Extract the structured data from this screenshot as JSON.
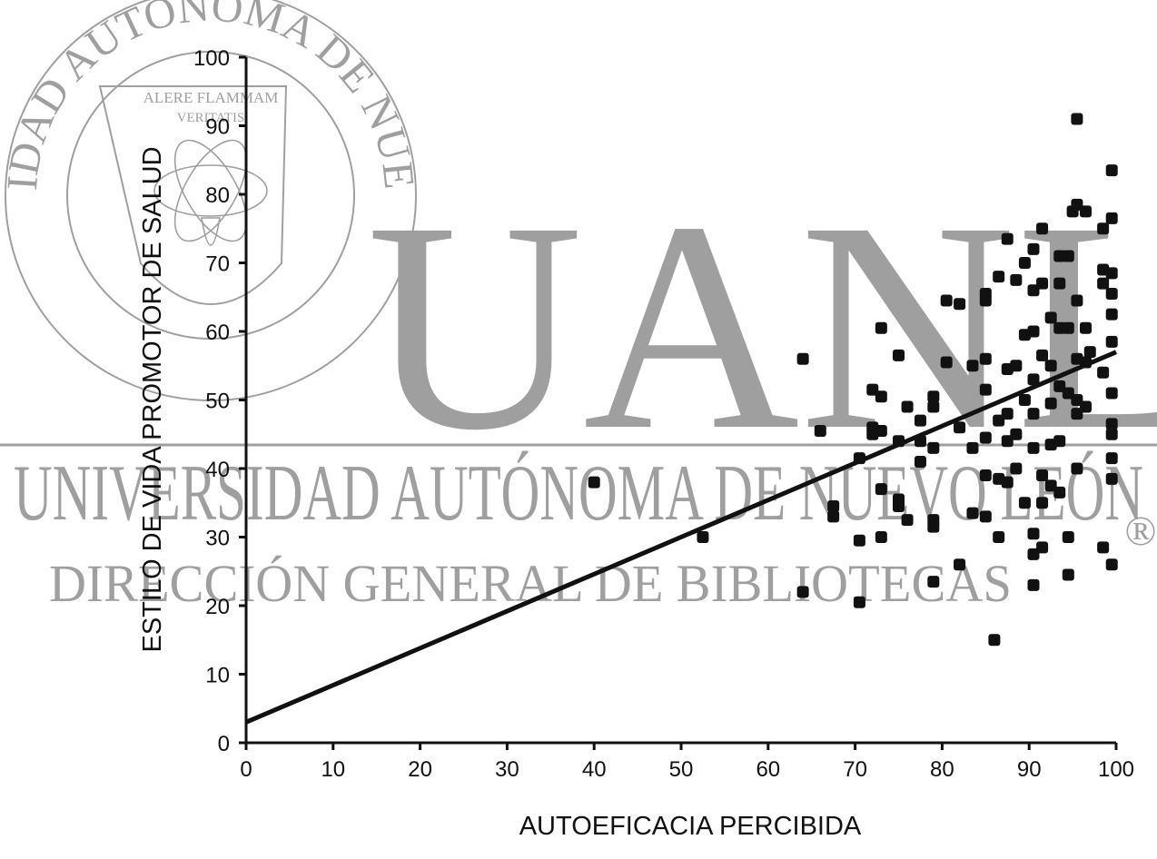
{
  "watermark": {
    "seal_ring_text": "UNIVERSIDAD AUTONOMA DE NUEVO LEON",
    "seal_motto_1": "ALERE FLAMMAM",
    "seal_motto_2": "VERITATIS",
    "logo": "UANL",
    "university": "UNIVERSIDAD AUTÓNOMA DE NUEVO LEÓN",
    "registered": "®",
    "department": "DIRECCIÓN GENERAL DE BIBLIOTECAS",
    "color": "#9a9a9a"
  },
  "chart_data": {
    "type": "scatter",
    "xlabel": "AUTOEFICACIA PERCIBIDA",
    "ylabel": "ESTILO DE VIDA PROMOTOR DE SALUD",
    "xlim": [
      0,
      100
    ],
    "ylim": [
      0,
      100
    ],
    "xticks": [
      0,
      10,
      20,
      30,
      40,
      50,
      60,
      70,
      80,
      90,
      100
    ],
    "yticks": [
      0,
      10,
      20,
      30,
      40,
      50,
      60,
      70,
      80,
      90,
      100
    ],
    "grid": false,
    "legend": "none",
    "marker_color": "#111111",
    "fit_line": {
      "type": "linear",
      "x": [
        0,
        100
      ],
      "y": [
        3,
        57
      ]
    },
    "points": [
      [
        40,
        38
      ],
      [
        52.5,
        30
      ],
      [
        64,
        56
      ],
      [
        64,
        22
      ],
      [
        66,
        45.5
      ],
      [
        67.5,
        34.5
      ],
      [
        67.5,
        33
      ],
      [
        70.5,
        29.5
      ],
      [
        70.5,
        20.5
      ],
      [
        70.5,
        41.5
      ],
      [
        72,
        51.5
      ],
      [
        72,
        46
      ],
      [
        72,
        45
      ],
      [
        73,
        60.5
      ],
      [
        73,
        50.5
      ],
      [
        73,
        45.5
      ],
      [
        73,
        37
      ],
      [
        73,
        30
      ],
      [
        75,
        56.5
      ],
      [
        75,
        44
      ],
      [
        75,
        35.5
      ],
      [
        75,
        34.5
      ],
      [
        76,
        32.5
      ],
      [
        76,
        49
      ],
      [
        77.5,
        47
      ],
      [
        77.5,
        44
      ],
      [
        77.5,
        41
      ],
      [
        79,
        50.5
      ],
      [
        79,
        49
      ],
      [
        79,
        43
      ],
      [
        79,
        32.5
      ],
      [
        79,
        31.5
      ],
      [
        79,
        23.5
      ],
      [
        80.5,
        64.5
      ],
      [
        80.5,
        55.5
      ],
      [
        82,
        64
      ],
      [
        82,
        46
      ],
      [
        82,
        26
      ],
      [
        83.5,
        55
      ],
      [
        83.5,
        43
      ],
      [
        83.5,
        33.5
      ],
      [
        85,
        65.5
      ],
      [
        85,
        64.5
      ],
      [
        85,
        56
      ],
      [
        85,
        51.5
      ],
      [
        85,
        44.5
      ],
      [
        85,
        39
      ],
      [
        85,
        33
      ],
      [
        86.5,
        68
      ],
      [
        86.5,
        47
      ],
      [
        86.5,
        38.5
      ],
      [
        86.5,
        30
      ],
      [
        86,
        15
      ],
      [
        87.5,
        73.5
      ],
      [
        87.5,
        54.5
      ],
      [
        87.5,
        48
      ],
      [
        87.5,
        44
      ],
      [
        87.5,
        38
      ],
      [
        88.5,
        67.5
      ],
      [
        88.5,
        55
      ],
      [
        88.5,
        45
      ],
      [
        88.5,
        40
      ],
      [
        89.5,
        70
      ],
      [
        89.5,
        59.5
      ],
      [
        89.5,
        50
      ],
      [
        89.5,
        35
      ],
      [
        90.5,
        72
      ],
      [
        90.5,
        66
      ],
      [
        90.5,
        60
      ],
      [
        90.5,
        53
      ],
      [
        90.5,
        48
      ],
      [
        90.5,
        43
      ],
      [
        90.5,
        30.5
      ],
      [
        90.5,
        27.5
      ],
      [
        90.5,
        23
      ],
      [
        91.5,
        75
      ],
      [
        91.5,
        67
      ],
      [
        91.5,
        56.5
      ],
      [
        91.5,
        39
      ],
      [
        91.5,
        35
      ],
      [
        91.5,
        28.5
      ],
      [
        92.5,
        62
      ],
      [
        92.5,
        55
      ],
      [
        92.5,
        49.5
      ],
      [
        92.5,
        43.5
      ],
      [
        92.5,
        37.5
      ],
      [
        93.5,
        71
      ],
      [
        93.5,
        67
      ],
      [
        93.5,
        60.5
      ],
      [
        93.5,
        52
      ],
      [
        93.5,
        44
      ],
      [
        93.5,
        36.5
      ],
      [
        94.5,
        71
      ],
      [
        94.5,
        60.5
      ],
      [
        94.5,
        51
      ],
      [
        94.5,
        30
      ],
      [
        94.5,
        24.5
      ],
      [
        95,
        77.5
      ],
      [
        95.5,
        91
      ],
      [
        95.5,
        78.5
      ],
      [
        95.5,
        64.5
      ],
      [
        95.5,
        56
      ],
      [
        95.5,
        50
      ],
      [
        95.5,
        48
      ],
      [
        95.5,
        40
      ],
      [
        96.5,
        77.5
      ],
      [
        96.5,
        60.5
      ],
      [
        96.5,
        55.5
      ],
      [
        96.5,
        49
      ],
      [
        97,
        57
      ],
      [
        98.5,
        75
      ],
      [
        98.5,
        69
      ],
      [
        98.5,
        67
      ],
      [
        98.5,
        54
      ],
      [
        98.5,
        28.5
      ],
      [
        99.5,
        83.5
      ],
      [
        99.5,
        76.5
      ],
      [
        99.5,
        68.5
      ],
      [
        99.5,
        65.5
      ],
      [
        99.5,
        62.5
      ],
      [
        99.5,
        58.5
      ],
      [
        99.5,
        51
      ],
      [
        99.5,
        46.5
      ],
      [
        99.5,
        45
      ],
      [
        99.5,
        41.5
      ],
      [
        99.5,
        38.5
      ],
      [
        99.5,
        26
      ]
    ]
  }
}
